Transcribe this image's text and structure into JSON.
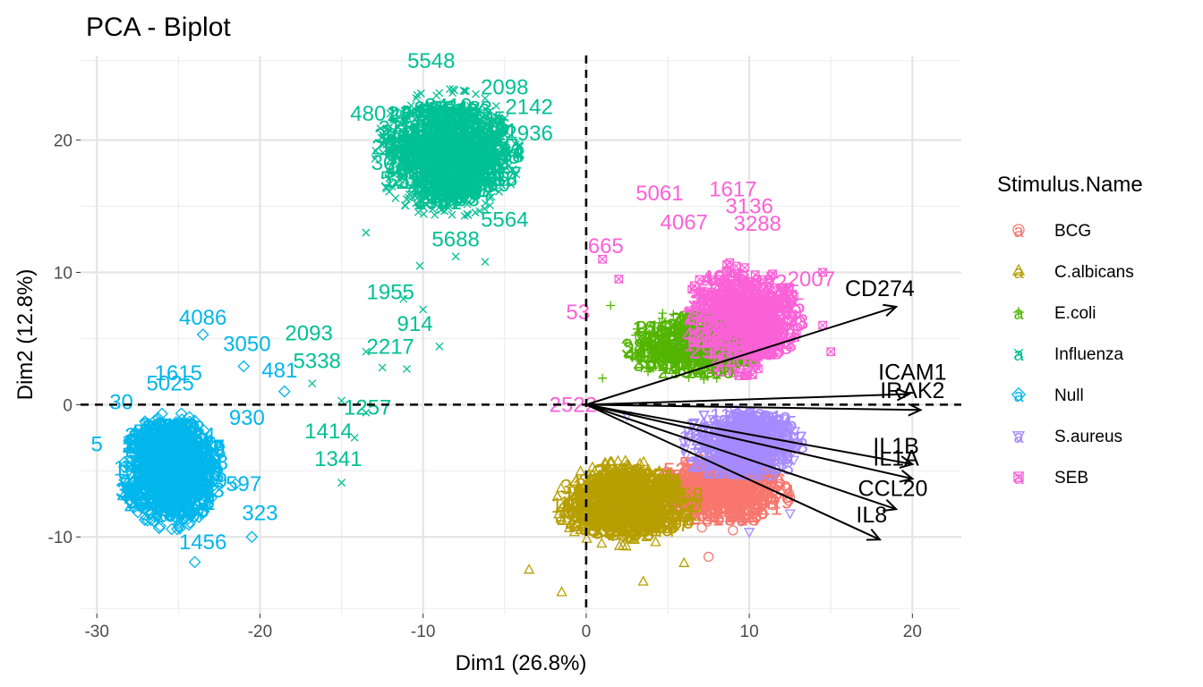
{
  "chart_data": {
    "type": "scatter",
    "title": "PCA - Biplot",
    "xlabel": "Dim1 (26.8%)",
    "ylabel": "Dim2 (12.8%)",
    "xlim": [
      -31,
      23
    ],
    "ylim": [
      -15.8,
      26.4
    ],
    "xticks": [
      -30,
      -20,
      -10,
      0,
      10,
      20
    ],
    "yticks": [
      -10,
      0,
      10,
      20
    ],
    "xtick_labels": [
      "-30",
      "-20",
      "-10",
      "0",
      "10",
      "20"
    ],
    "ytick_labels": [
      "-10",
      "0",
      "10",
      "20"
    ],
    "reference_lines": {
      "x": 0,
      "y": 0,
      "style": "dashed"
    },
    "legend": {
      "title": "Stimulus.Name",
      "position": "right",
      "entries": [
        {
          "name": "BCG",
          "color": "#F8766D",
          "shape": "circle"
        },
        {
          "name": "C.albicans",
          "color": "#B79F00",
          "shape": "triangle"
        },
        {
          "name": "E.coli",
          "color": "#53B400",
          "shape": "plus"
        },
        {
          "name": "Influenza",
          "color": "#00C094",
          "shape": "cross"
        },
        {
          "name": "Null",
          "color": "#00B6EB",
          "shape": "diamond"
        },
        {
          "name": "S.aureus",
          "color": "#A58AFF",
          "shape": "triangle-down"
        },
        {
          "name": "SEB",
          "color": "#FB61D7",
          "shape": "square-cross"
        }
      ]
    },
    "series": [
      {
        "name": "BCG",
        "color": "#F8766D",
        "shape": "circle",
        "center": [
          8.5,
          -6.5
        ],
        "spread": [
          3.0,
          2.2
        ],
        "count": 300,
        "points": [
          [
            9.0,
            -9.5
          ],
          [
            7.5,
            -11.5
          ],
          [
            12.5,
            -7.0
          ],
          [
            5.5,
            -9.0
          ]
        ],
        "labels": []
      },
      {
        "name": "C.albicans",
        "color": "#B79F00",
        "shape": "triangle",
        "center": [
          2.5,
          -7.5
        ],
        "spread": [
          3.2,
          2.4
        ],
        "count": 450,
        "points": [
          [
            -1.5,
            -14.2
          ],
          [
            3.5,
            -13.4
          ],
          [
            -3.5,
            -12.5
          ],
          [
            6.0,
            -12.0
          ]
        ],
        "labels": []
      },
      {
        "name": "E.coli",
        "color": "#53B400",
        "shape": "plus",
        "center": [
          6.5,
          4.5
        ],
        "spread": [
          3.0,
          2.0
        ],
        "count": 250,
        "points": [
          [
            1.5,
            7.5
          ],
          [
            1.0,
            2.0
          ]
        ],
        "labels": []
      },
      {
        "name": "Influenza",
        "color": "#00C094",
        "shape": "cross",
        "center": [
          -8.5,
          19.0
        ],
        "spread": [
          3.3,
          3.6
        ],
        "count": 650,
        "points": [
          [
            -6.2,
            10.8
          ],
          [
            -10.0,
            7.2
          ],
          [
            -15.0,
            0.3
          ],
          [
            -13.5,
            -0.6
          ],
          [
            -14.2,
            -2.5
          ],
          [
            -15.0,
            -5.9
          ],
          [
            -16.8,
            1.6
          ],
          [
            -12.5,
            2.8
          ],
          [
            -11.0,
            2.7
          ],
          [
            -9.0,
            4.4
          ],
          [
            -13.5,
            4.0
          ],
          [
            -11.2,
            8.0
          ],
          [
            -10.2,
            10.5
          ],
          [
            -13.5,
            13.0
          ],
          [
            -8.0,
            11.2
          ]
        ],
        "labels": [
          {
            "text": "914",
            "x": -10.5,
            "y": 6.1
          },
          {
            "text": "1955",
            "x": -12.0,
            "y": 8.5
          },
          {
            "text": "1257",
            "x": -13.4,
            "y": -0.2
          },
          {
            "text": "1414",
            "x": -15.8,
            "y": -2.0
          },
          {
            "text": "1341",
            "x": -15.2,
            "y": -4.1
          },
          {
            "text": "2217",
            "x": -12.0,
            "y": 4.4
          },
          {
            "text": "5338",
            "x": -16.5,
            "y": 3.3
          },
          {
            "text": "2093",
            "x": -17.0,
            "y": 5.4
          },
          {
            "text": "5688",
            "x": -8.0,
            "y": 12.5
          },
          {
            "text": "5564",
            "x": -5.0,
            "y": 14.0
          },
          {
            "text": "2936",
            "x": -3.5,
            "y": 20.5
          },
          {
            "text": "2098",
            "x": -5.0,
            "y": 24.0
          },
          {
            "text": "2142",
            "x": -3.5,
            "y": 22.5
          },
          {
            "text": "5548",
            "x": -9.5,
            "y": 26.0
          },
          {
            "text": "4801",
            "x": -13.0,
            "y": 22.0
          }
        ]
      },
      {
        "name": "Null",
        "color": "#00B6EB",
        "shape": "diamond",
        "center": [
          -25.5,
          -5.0
        ],
        "spread": [
          2.1,
          3.3
        ],
        "count": 600,
        "points": [
          [
            -23.5,
            5.3
          ],
          [
            -21.0,
            2.9
          ],
          [
            -18.5,
            1.0
          ],
          [
            -20.5,
            -10.0
          ],
          [
            -24.0,
            -11.9
          ],
          [
            -21.5,
            -6.0
          ]
        ],
        "labels": [
          {
            "text": "4086",
            "x": -23.5,
            "y": 6.6
          },
          {
            "text": "3050",
            "x": -20.8,
            "y": 4.6
          },
          {
            "text": "481",
            "x": -18.8,
            "y": 2.6
          },
          {
            "text": "1615",
            "x": -25.0,
            "y": 2.4
          },
          {
            "text": "5025",
            "x": -25.5,
            "y": 1.6
          },
          {
            "text": "930",
            "x": -20.8,
            "y": -1.0
          },
          {
            "text": "597",
            "x": -21.0,
            "y": -6.0
          },
          {
            "text": "323",
            "x": -20.0,
            "y": -8.2
          },
          {
            "text": "1456",
            "x": -23.5,
            "y": -10.4
          },
          {
            "text": "30",
            "x": -28.5,
            "y": 0.2
          },
          {
            "text": "5",
            "x": -30.0,
            "y": -3.0
          }
        ]
      },
      {
        "name": "S.aureus",
        "color": "#A58AFF",
        "shape": "triangle-down",
        "center": [
          9.5,
          -3.0
        ],
        "spread": [
          2.6,
          2.2
        ],
        "count": 300,
        "points": [
          [
            10.0,
            -9.6
          ],
          [
            12.5,
            -8.2
          ],
          [
            9.5,
            -8.8
          ],
          [
            2.5,
            -0.8
          ]
        ],
        "labels": []
      },
      {
        "name": "SEB",
        "color": "#FB61D7",
        "shape": "square-cross",
        "center": [
          9.5,
          6.5
        ],
        "spread": [
          2.6,
          3.2
        ],
        "count": 400,
        "points": [
          [
            1.0,
            11.0
          ],
          [
            2.0,
            9.5
          ],
          [
            14.5,
            10.0
          ],
          [
            14.5,
            6.0
          ],
          [
            15.0,
            4.0
          ]
        ],
        "labels": [
          {
            "text": "5061",
            "x": 4.5,
            "y": 16.0
          },
          {
            "text": "1617",
            "x": 9.0,
            "y": 16.3
          },
          {
            "text": "3136",
            "x": 10.0,
            "y": 15.0
          },
          {
            "text": "4067",
            "x": 6.0,
            "y": 13.8
          },
          {
            "text": "3288",
            "x": 10.5,
            "y": 13.7
          },
          {
            "text": "665",
            "x": 1.2,
            "y": 12.0
          },
          {
            "text": "53",
            "x": -0.5,
            "y": 7.0
          },
          {
            "text": "2522",
            "x": -0.8,
            "y": 0.0
          },
          {
            "text": "2007",
            "x": 13.8,
            "y": 9.5
          }
        ]
      }
    ],
    "variables": [
      {
        "name": "CD274",
        "x": 19.0,
        "y": 7.4,
        "label_x": 18.0,
        "label_y": 8.8
      },
      {
        "name": "ICAM1",
        "x": 19.8,
        "y": 0.8,
        "label_x": 20.0,
        "label_y": 2.5
      },
      {
        "name": "IRAK2",
        "x": 20.5,
        "y": -0.4,
        "label_x": 20.0,
        "label_y": 1.1
      },
      {
        "name": "IL1B",
        "x": 20.0,
        "y": -4.5,
        "label_x": 19.0,
        "label_y": -3.1
      },
      {
        "name": "IL1A",
        "x": 20.0,
        "y": -5.6,
        "label_x": 19.0,
        "label_y": -4.0
      },
      {
        "name": "CCL20",
        "x": 19.0,
        "y": -7.9,
        "label_x": 18.8,
        "label_y": -6.3
      },
      {
        "name": "IL8",
        "x": 18.0,
        "y": -10.2,
        "label_x": 17.5,
        "label_y": -8.3
      }
    ]
  }
}
